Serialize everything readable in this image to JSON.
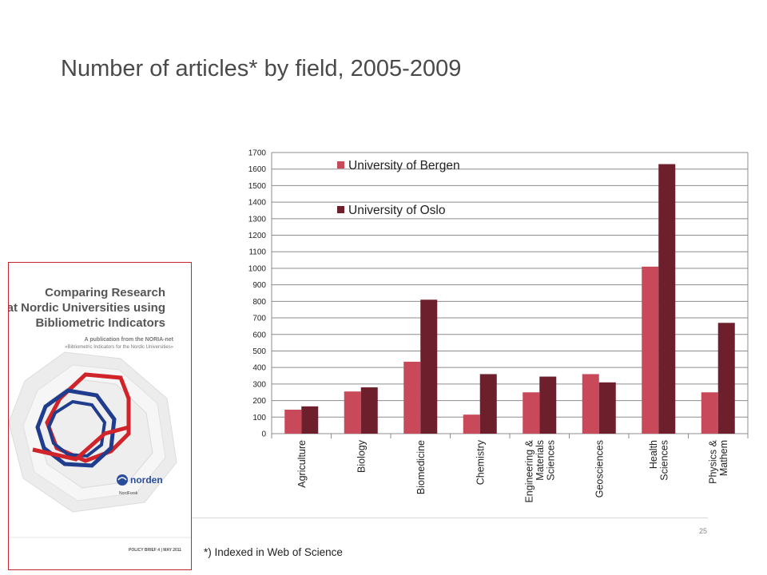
{
  "slide": {
    "title": "Number of articles* by field, 2005-2009",
    "footnote": "*) Indexed in Web of Science",
    "page_number": "25"
  },
  "cover": {
    "title_lines": [
      "Comparing Research",
      "at Nordic Universities using",
      "Bibliometric Indicators"
    ],
    "subtitle_lines": [
      "A publication from the NORIA-net",
      "«Bibliometric Indicators for the Nordic Universities»"
    ],
    "logo_text": "norden",
    "logo_sub": "NordForsk",
    "footer_text": "POLICY BRIEF 4  |  MAY 2011"
  },
  "colors": {
    "bergen": "#c8495a",
    "oslo": "#6e1f2c",
    "cover_red": "#d0232a",
    "cover_blue": "#1f3d8c"
  },
  "chart_data": {
    "type": "bar",
    "categories": [
      [
        "Agriculture"
      ],
      [
        "Biology"
      ],
      [
        "Biomedicine"
      ],
      [
        "Chemistry"
      ],
      [
        "Engineering &",
        "Materials",
        "Sciences"
      ],
      [
        "Geosciences"
      ],
      [
        "Health",
        "Sciences"
      ],
      [
        "Physics &",
        "Mathem"
      ]
    ],
    "series": [
      {
        "name": "University of Bergen",
        "values": [
          145,
          255,
          435,
          115,
          250,
          360,
          1010,
          250
        ]
      },
      {
        "name": "University of Oslo",
        "values": [
          165,
          280,
          810,
          360,
          345,
          310,
          1630,
          670
        ]
      }
    ],
    "ylim": [
      0,
      1700
    ],
    "yticks": [
      0,
      100,
      200,
      300,
      400,
      500,
      600,
      700,
      800,
      900,
      1000,
      1100,
      1200,
      1300,
      1400,
      1500,
      1600,
      1700
    ],
    "grid": true,
    "legend_position": "top-left",
    "xlabel": "",
    "ylabel": ""
  }
}
